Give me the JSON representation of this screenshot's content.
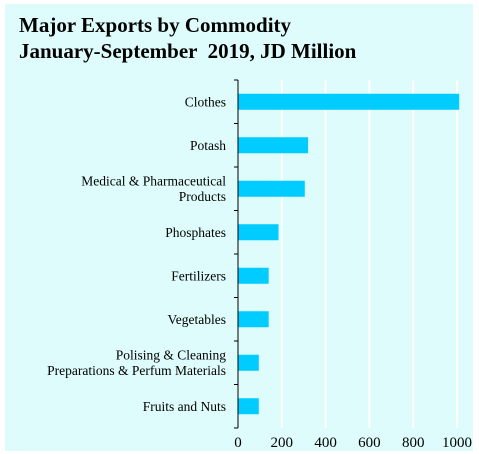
{
  "chart_data": {
    "type": "bar",
    "orientation": "horizontal",
    "title_lines": [
      "Major Exports by Commodity",
      "January-September  2019, JD Million"
    ],
    "categories": [
      "Clothes",
      "Potash",
      "Medical & Pharmaceutical Products",
      "Phosphates",
      "Fertilizers",
      "Vegetables",
      "Polising & Cleaning Preparations & Perfum Materials",
      "Fruits and Nuts"
    ],
    "category_lines": [
      [
        "Clothes"
      ],
      [
        "Potash"
      ],
      [
        "Medical & Pharmaceutical",
        "Products"
      ],
      [
        "Phosphates"
      ],
      [
        "Fertilizers"
      ],
      [
        "Vegetables"
      ],
      [
        "Polising & Cleaning",
        "Preparations & Perfum Materials"
      ],
      [
        "Fruits and Nuts"
      ]
    ],
    "values": [
      1010,
      320,
      305,
      185,
      140,
      140,
      95,
      95
    ],
    "xlim": [
      0,
      1000
    ],
    "xticks": [
      0,
      200,
      400,
      600,
      800,
      1000
    ],
    "xlabel": "",
    "ylabel": "",
    "grid": true,
    "bar_color": "#00ccff",
    "grid_color": "#ffffff",
    "background_color": "#ddfcfb"
  }
}
